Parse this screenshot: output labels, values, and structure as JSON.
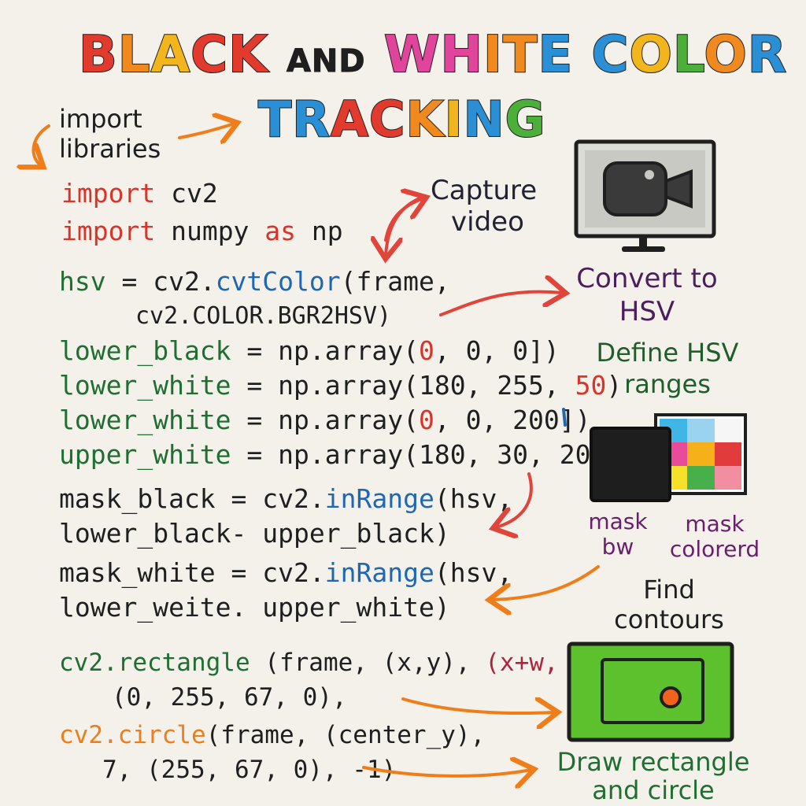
{
  "title": {
    "line1": [
      {
        "text": "B",
        "color": "#e23b2e"
      },
      {
        "text": "L",
        "color": "#f08a1e"
      },
      {
        "text": "A",
        "color": "#f2b51c"
      },
      {
        "text": "C",
        "color": "#e23b2e"
      },
      {
        "text": "K",
        "color": "#e23b2e"
      }
    ],
    "and": "AND",
    "line1b": [
      {
        "text": "W",
        "color": "#e0449b"
      },
      {
        "text": "H",
        "color": "#e0449b"
      },
      {
        "text": "I",
        "color": "#f08a1e"
      },
      {
        "text": "T",
        "color": "#f08a1e"
      },
      {
        "text": "E",
        "color": "#2b8fd6"
      }
    ],
    "color_word": [
      {
        "text": "C",
        "color": "#2b8fd6"
      },
      {
        "text": "O",
        "color": "#f2b51c"
      },
      {
        "text": "L",
        "color": "#4caf3a"
      },
      {
        "text": "O",
        "color": "#f08a1e"
      },
      {
        "text": "R",
        "color": "#2b8fd6"
      }
    ],
    "line2": [
      {
        "text": "T",
        "color": "#2b8fd6"
      },
      {
        "text": "R",
        "color": "#2b8fd6"
      },
      {
        "text": "A",
        "color": "#e23b2e"
      },
      {
        "text": "C",
        "color": "#e23b2e"
      },
      {
        "text": "K",
        "color": "#f08a1e"
      },
      {
        "text": "I",
        "color": "#f2b51c"
      },
      {
        "text": "N",
        "color": "#2b8fd6"
      },
      {
        "text": "G",
        "color": "#4caf3a"
      }
    ]
  },
  "notes": {
    "import_libraries_1": "import",
    "import_libraries_2": "libraries",
    "capture_video_1": "Capture",
    "capture_video_2": "video",
    "convert_hsv_1": "Convert to",
    "convert_hsv_2": "HSV",
    "define_ranges_1": "Define HSV",
    "define_ranges_2": "ranges",
    "mask_bw_1": "mask",
    "mask_bw_2": "bw",
    "mask_colored_1": "mask",
    "mask_colored_2": "colorerd",
    "find_contours_1": "Find",
    "find_contours_2": "contours",
    "draw_rect_circle_1": "Draw rectangle",
    "draw_rect_circle_2": "and circle"
  },
  "code": {
    "import1_kw": "import",
    "import1_mod": " cv2",
    "import2_kw": "import",
    "import2_mod": " numpy ",
    "import2_as": "as",
    "import2_alias": " np",
    "hsv_var": "hsv",
    "hsv_eq": " = cv2.",
    "hsv_fn": "cvtColor",
    "hsv_args": "(frame,",
    "hsv_line2": "cv2.COLOR.BGR",
    "hsv_line2b": "2HSV)",
    "lb_var": "lower_black",
    "lb_eq": " = np.array(",
    "lb_n1": "0",
    "lb_rest": ",  0,  0])",
    "lw1_var": "lower_white",
    "lw1_eq": " = np.array(",
    "lw1_n1": "180",
    "lw1_rest": ", 255, ",
    "lw1_n3": "50",
    "lw1_end": ")",
    "lw2_var": "lower_white",
    "lw2_eq": " = np.array(",
    "lw2_n1": "0",
    "lw2_rest": ", 0, 200])",
    "uw_var": "upper_white",
    "uw_eq": " = np.array(",
    "uw_rest": "180, 30, 205)",
    "mb_var": "mask_black",
    "mb_eq": " = cv2.",
    "mb_fn": "inRange",
    "mb_args": "(hsv,",
    "mb_line2": "lower_black- upper_black)",
    "mw_var": "mask_white",
    "mw_eq": " = cv2.",
    "mw_fn": "inRange",
    "mw_args": "(hsv,",
    "mw_line2": "lower_weite. upper_white)",
    "rect_fn": "cv2.rectangle",
    "rect_args": " (frame, (x,y), ",
    "rect_x2": "(x+w, h),",
    "rect_line2": "(0, 255, 67, 0),",
    "circ_fn": "cv2.circle",
    "circ_args": "(frame, (center_y),",
    "circ_line2": "7, (255, 67, 0), -1)"
  },
  "colors": {
    "background": "#f4f1ea",
    "keyword": "#d9342b",
    "variable": "#1f6e32",
    "function": "#1f66b3",
    "arrow_orange": "#ef7d1a",
    "arrow_red": "#e0443a",
    "rect_green": "#5cc12d",
    "circle_orange": "#f0621e"
  },
  "icons": {
    "camera": "camera-monitor-icon",
    "swatches": "color-swatch-icon",
    "tracking": "green-frame-circle-icon"
  }
}
